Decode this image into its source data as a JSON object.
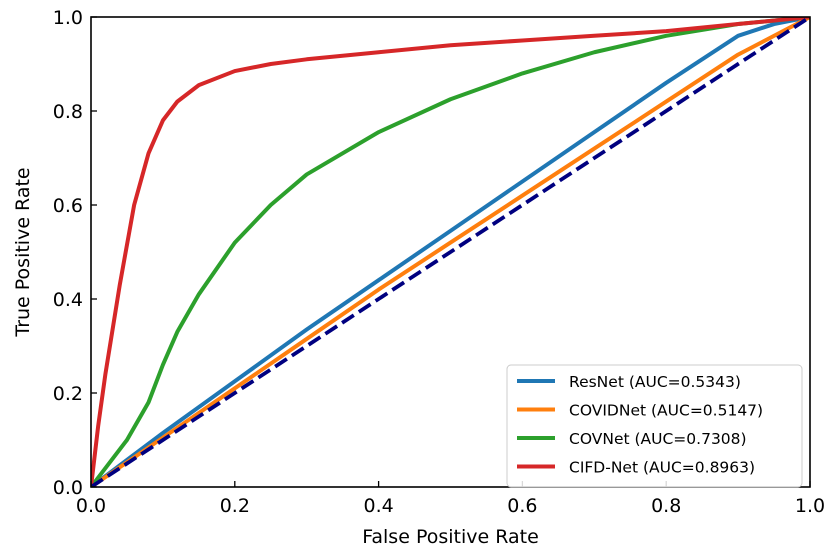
{
  "chart_data": {
    "type": "line",
    "title": "",
    "xlabel": "False Positive Rate",
    "ylabel": "True Positive Rate",
    "xlim": [
      0.0,
      1.0
    ],
    "ylim": [
      0.0,
      1.0
    ],
    "xticks": [
      "0.0",
      "0.2",
      "0.4",
      "0.6",
      "0.8",
      "1.0"
    ],
    "yticks": [
      "0.0",
      "0.2",
      "0.4",
      "0.6",
      "0.8",
      "1.0"
    ],
    "grid": false,
    "legend_position": "bottom-right",
    "series": [
      {
        "name": "ResNet (AUC=0.5343)",
        "color": "#1f77b4",
        "style": "solid",
        "x": [
          0.0,
          0.1,
          0.2,
          0.3,
          0.4,
          0.5,
          0.6,
          0.7,
          0.8,
          0.9,
          0.95,
          1.0
        ],
        "y": [
          0.0,
          0.115,
          0.225,
          0.335,
          0.44,
          0.545,
          0.65,
          0.755,
          0.86,
          0.96,
          0.985,
          1.0
        ]
      },
      {
        "name": "COVIDNet (AUC=0.5147)",
        "color": "#ff7f0e",
        "style": "solid",
        "x": [
          0.0,
          0.1,
          0.2,
          0.3,
          0.4,
          0.5,
          0.6,
          0.7,
          0.8,
          0.9,
          1.0
        ],
        "y": [
          0.0,
          0.105,
          0.21,
          0.315,
          0.42,
          0.52,
          0.62,
          0.72,
          0.82,
          0.92,
          1.0
        ]
      },
      {
        "name": "COVNet (AUC=0.7308)",
        "color": "#2ca02c",
        "style": "solid",
        "x": [
          0.0,
          0.02,
          0.05,
          0.08,
          0.1,
          0.12,
          0.15,
          0.2,
          0.25,
          0.3,
          0.4,
          0.5,
          0.6,
          0.7,
          0.8,
          0.9,
          1.0
        ],
        "y": [
          0.0,
          0.04,
          0.1,
          0.18,
          0.26,
          0.33,
          0.41,
          0.52,
          0.6,
          0.665,
          0.755,
          0.825,
          0.88,
          0.925,
          0.96,
          0.985,
          1.0
        ]
      },
      {
        "name": "CIFD-Net (AUC=0.8963)",
        "color": "#d62728",
        "style": "solid",
        "x": [
          0.0,
          0.01,
          0.02,
          0.04,
          0.06,
          0.08,
          0.1,
          0.12,
          0.15,
          0.2,
          0.25,
          0.3,
          0.4,
          0.5,
          0.6,
          0.7,
          0.8,
          0.9,
          1.0
        ],
        "y": [
          0.0,
          0.13,
          0.24,
          0.43,
          0.6,
          0.71,
          0.78,
          0.82,
          0.855,
          0.885,
          0.9,
          0.91,
          0.925,
          0.94,
          0.95,
          0.96,
          0.97,
          0.985,
          1.0
        ]
      },
      {
        "name": "",
        "color": "#000080",
        "style": "dashed",
        "x": [
          0.0,
          1.0
        ],
        "y": [
          0.0,
          1.0
        ]
      }
    ]
  }
}
